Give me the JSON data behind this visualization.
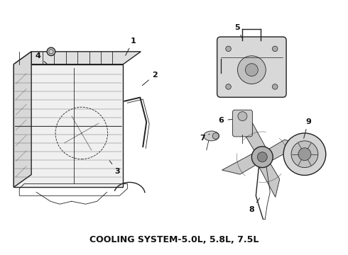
{
  "title": "COOLING SYSTEM-5.0L, 5.8L, 7.5L",
  "title_fontsize": 9,
  "title_fontweight": "bold",
  "background_color": "#ffffff",
  "figsize": [
    4.9,
    3.6
  ],
  "dpi": 100,
  "label_fontsize": 8,
  "line_color": "#222222",
  "text_color": "#111111",
  "label_positions": {
    "1": [
      1.87,
      3.03,
      1.75,
      2.8
    ],
    "2": [
      2.18,
      2.55,
      1.98,
      2.38
    ],
    "3": [
      1.65,
      1.18,
      1.52,
      1.35
    ],
    "4": [
      0.52,
      2.82,
      0.68,
      2.68
    ],
    "5": [
      3.35,
      3.22,
      3.42,
      3.05
    ],
    "6": [
      3.12,
      1.9,
      3.3,
      1.92
    ],
    "7": [
      2.85,
      1.65,
      2.98,
      1.72
    ],
    "8": [
      3.55,
      0.63,
      3.68,
      0.82
    ],
    "9": [
      4.35,
      1.88,
      4.28,
      1.62
    ]
  }
}
